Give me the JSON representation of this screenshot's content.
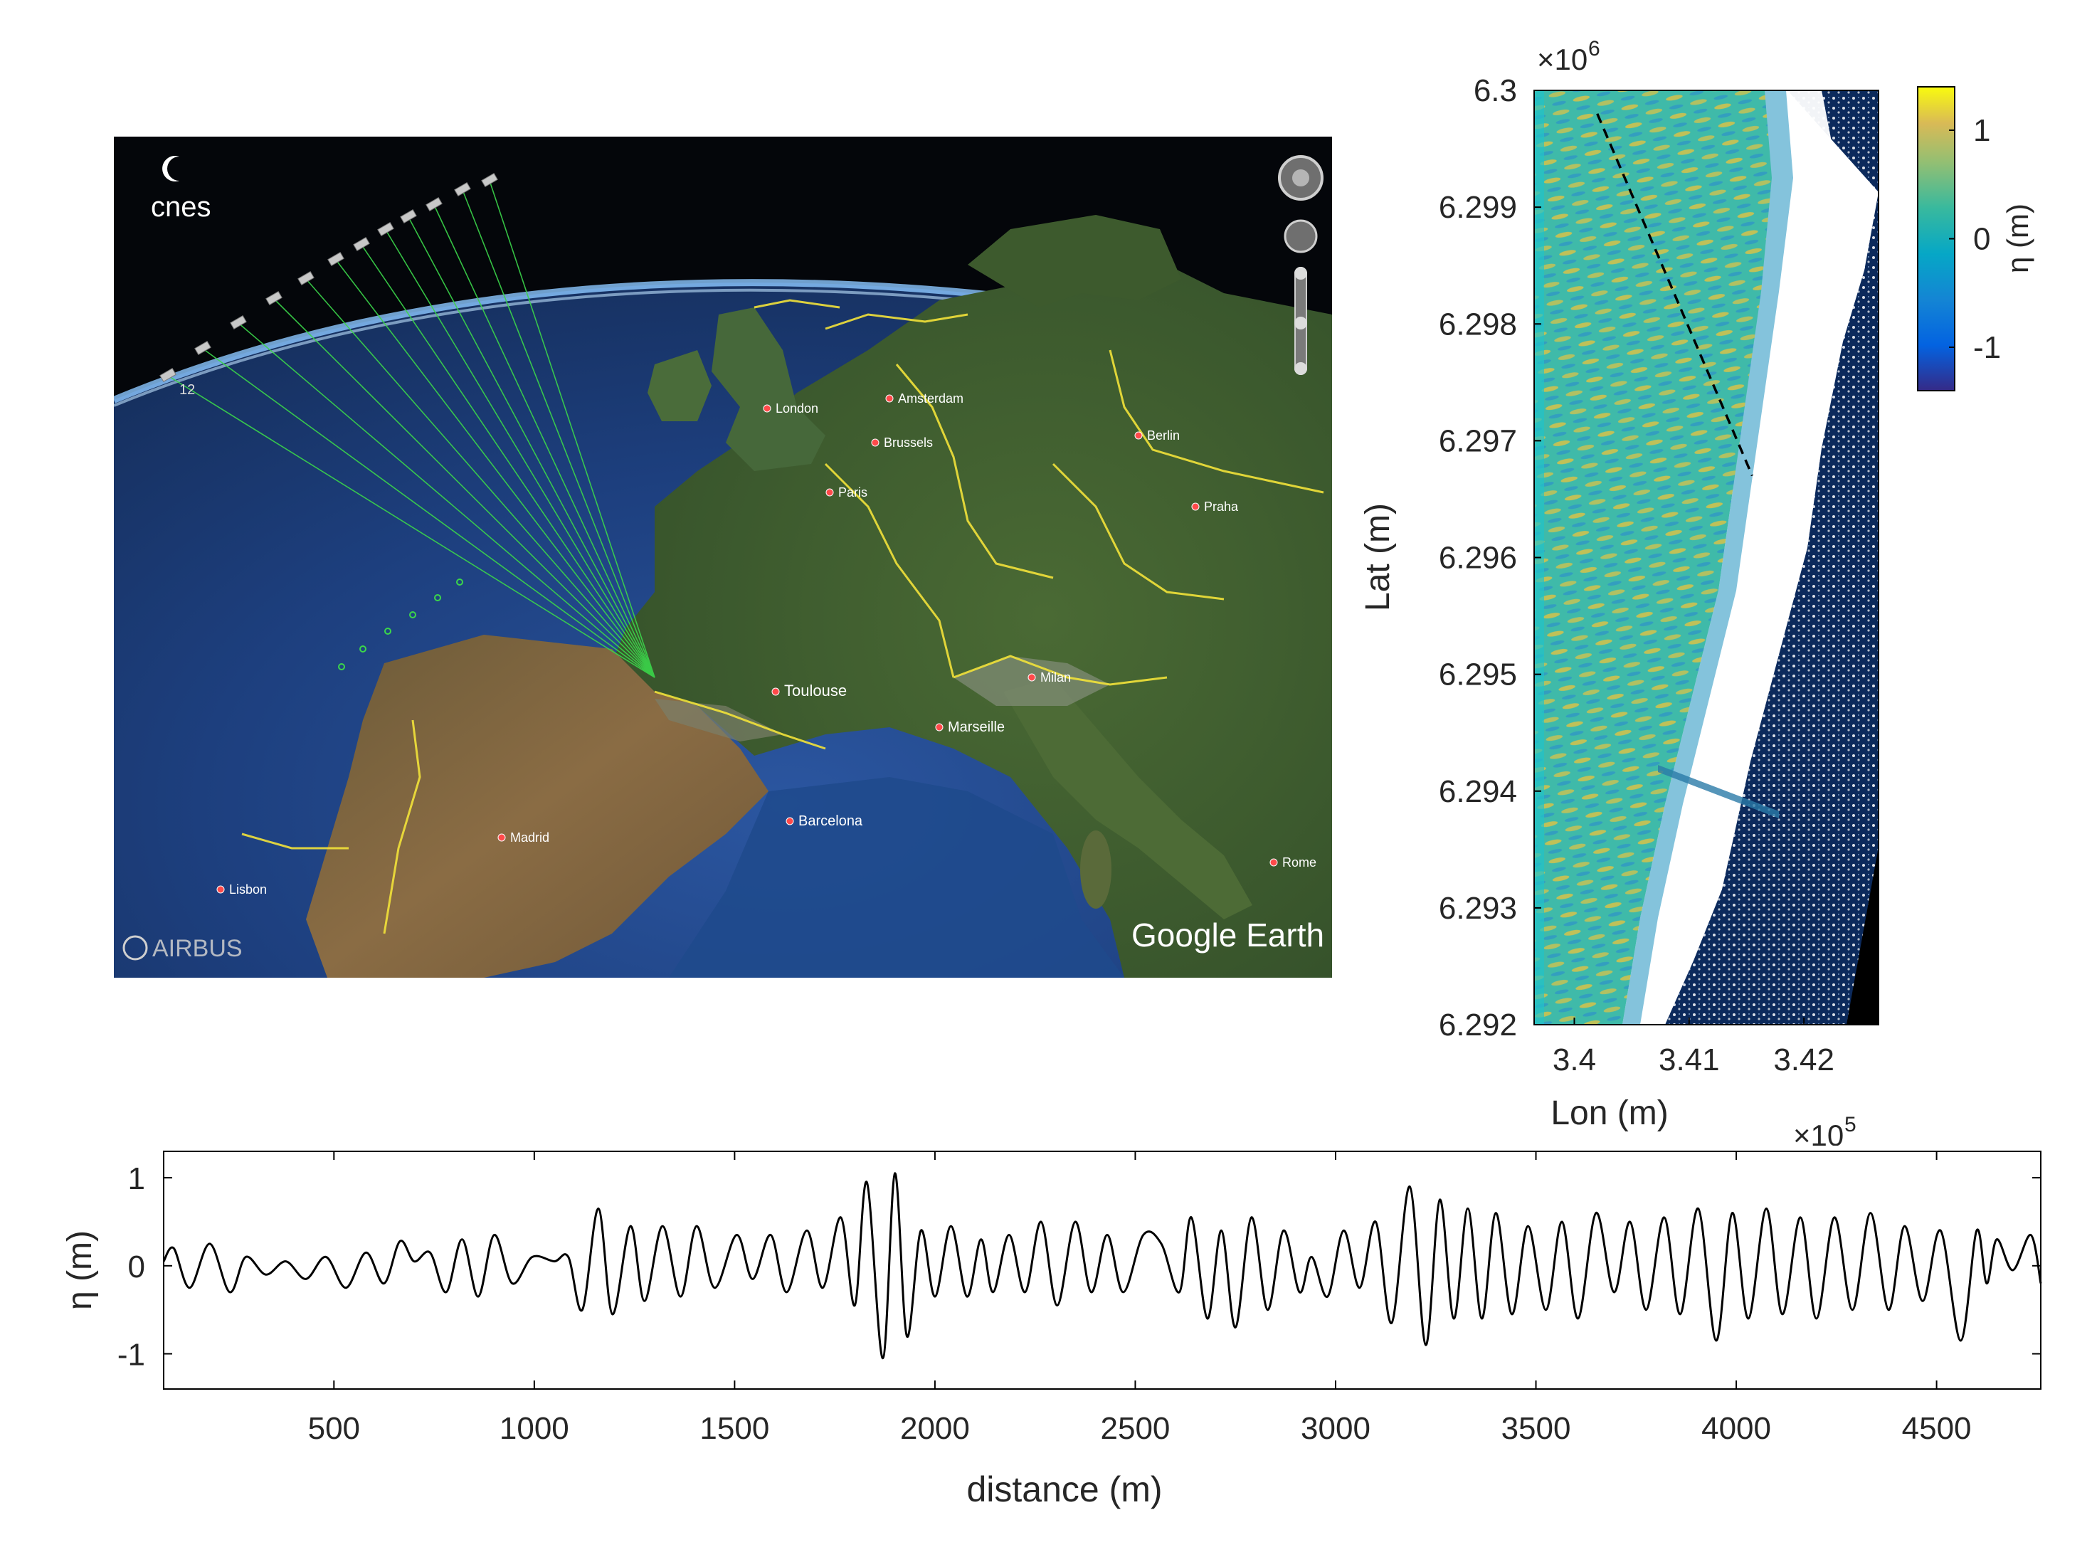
{
  "globe": {
    "logo_text": "cnes",
    "credit": "AIRBUS",
    "watermark": "Google Earth",
    "satellite_label": "12",
    "cities": [
      {
        "name": "London"
      },
      {
        "name": "Amsterdam"
      },
      {
        "name": "Brussels"
      },
      {
        "name": "Paris"
      },
      {
        "name": "Toulouse"
      },
      {
        "name": "Marseille"
      },
      {
        "name": "Barcelona"
      },
      {
        "name": "Madrid"
      },
      {
        "name": "Lisbon"
      },
      {
        "name": "Milan"
      },
      {
        "name": "Rome"
      },
      {
        "name": "Praha"
      },
      {
        "name": "Berlin"
      }
    ],
    "colors": {
      "ocean": "#1d3f7e",
      "land": "#3e5a2c",
      "borders": "#f2e23a",
      "rays": "#3bd64a",
      "space": "#04060a"
    }
  },
  "chart_data": [
    {
      "type": "heatmap",
      "xlabel": "Lon (m)",
      "ylabel": "Lat (m)",
      "x_multiplier": "×10",
      "x_multiplier_exp": "5",
      "y_multiplier": "×10",
      "y_multiplier_exp": "6",
      "xticks": [
        "3.4",
        "3.41",
        "3.42"
      ],
      "xtick_values": [
        3.4,
        3.41,
        3.42
      ],
      "yticks": [
        "6.3",
        "6.299",
        "6.298",
        "6.297",
        "6.296",
        "6.295",
        "6.294",
        "6.293",
        "6.292"
      ],
      "ytick_values": [
        6.3,
        6.299,
        6.298,
        6.297,
        6.296,
        6.295,
        6.294,
        6.293,
        6.292
      ],
      "xlim": [
        3.3965,
        3.4265
      ],
      "ylim": [
        6.292,
        6.3
      ],
      "colorbar": {
        "label": "η (m)",
        "ticks": [
          "1",
          "0",
          "-1"
        ],
        "tick_values": [
          1,
          0,
          -1
        ],
        "range": [
          -1.4,
          1.4
        ],
        "colormap": "parula"
      },
      "transect_line": {
        "style": "dashed",
        "color": "#000000",
        "from": [
          3.402,
          6.2998
        ],
        "to": [
          3.4155,
          6.2967
        ]
      },
      "colors": {
        "swath": "#3fbaa9",
        "crest": "#d6c24a",
        "trough": "#2e93c9",
        "land": "#0c2a5c",
        "surf": "#ffffff",
        "nodata": "#000000"
      }
    },
    {
      "type": "line",
      "xlabel": "distance (m)",
      "ylabel": "η (m)",
      "xticks": [
        "500",
        "1000",
        "1500",
        "2000",
        "2500",
        "3000",
        "3500",
        "4000",
        "4500"
      ],
      "xtick_values": [
        500,
        1000,
        1500,
        2000,
        2500,
        3000,
        3500,
        4000,
        4500
      ],
      "yticks": [
        "1",
        "0",
        "-1"
      ],
      "ytick_values": [
        1,
        0,
        -1
      ],
      "xlim": [
        75,
        4760
      ],
      "ylim": [
        -1.4,
        1.3
      ],
      "grid": false,
      "series": [
        {
          "color": "#000000",
          "x": [
            75,
            100,
            140,
            190,
            240,
            280,
            330,
            380,
            430,
            480,
            530,
            580,
            625,
            665,
            700,
            740,
            780,
            820,
            860,
            900,
            945,
            995,
            1050,
            1085,
            1120,
            1160,
            1195,
            1240,
            1275,
            1320,
            1365,
            1405,
            1450,
            1505,
            1545,
            1590,
            1630,
            1680,
            1720,
            1765,
            1800,
            1830,
            1870,
            1900,
            1930,
            1965,
            2000,
            2040,
            2080,
            2115,
            2145,
            2185,
            2225,
            2265,
            2305,
            2350,
            2390,
            2430,
            2470,
            2520,
            2565,
            2610,
            2640,
            2680,
            2715,
            2750,
            2790,
            2830,
            2870,
            2910,
            2940,
            2980,
            3020,
            3060,
            3100,
            3140,
            3185,
            3225,
            3260,
            3295,
            3330,
            3365,
            3400,
            3440,
            3480,
            3525,
            3565,
            3605,
            3650,
            3695,
            3735,
            3775,
            3820,
            3860,
            3905,
            3950,
            3990,
            4030,
            4075,
            4115,
            4160,
            4200,
            4245,
            4290,
            4335,
            4380,
            4420,
            4465,
            4510,
            4560,
            4600,
            4625,
            4650,
            4690,
            4735,
            4760
          ],
          "y": [
            0.05,
            0.2,
            -0.25,
            0.25,
            -0.3,
            0.1,
            -0.1,
            0.05,
            -0.15,
            0.1,
            -0.25,
            0.15,
            -0.2,
            0.28,
            0.05,
            0.15,
            -0.3,
            0.3,
            -0.35,
            0.35,
            -0.2,
            0.1,
            0.05,
            0.1,
            -0.5,
            0.65,
            -0.55,
            0.45,
            -0.4,
            0.45,
            -0.35,
            0.45,
            -0.25,
            0.35,
            -0.15,
            0.35,
            -0.3,
            0.4,
            -0.25,
            0.55,
            -0.45,
            0.95,
            -1.05,
            1.05,
            -0.8,
            0.4,
            -0.35,
            0.45,
            -0.35,
            0.3,
            -0.3,
            0.35,
            -0.3,
            0.5,
            -0.45,
            0.5,
            -0.3,
            0.35,
            -0.3,
            0.35,
            0.25,
            -0.3,
            0.55,
            -0.6,
            0.4,
            -0.7,
            0.55,
            -0.5,
            0.4,
            -0.3,
            0.1,
            -0.35,
            0.4,
            -0.25,
            0.5,
            -0.65,
            0.9,
            -0.9,
            0.75,
            -0.6,
            0.65,
            -0.6,
            0.6,
            -0.55,
            0.45,
            -0.5,
            0.5,
            -0.6,
            0.6,
            -0.3,
            0.5,
            -0.5,
            0.55,
            -0.55,
            0.65,
            -0.85,
            0.6,
            -0.6,
            0.65,
            -0.55,
            0.55,
            -0.6,
            0.55,
            -0.5,
            0.6,
            -0.5,
            0.45,
            -0.4,
            0.4,
            -0.85,
            0.4,
            -0.2,
            0.3,
            -0.05,
            0.35,
            -0.2
          ]
        }
      ]
    }
  ]
}
